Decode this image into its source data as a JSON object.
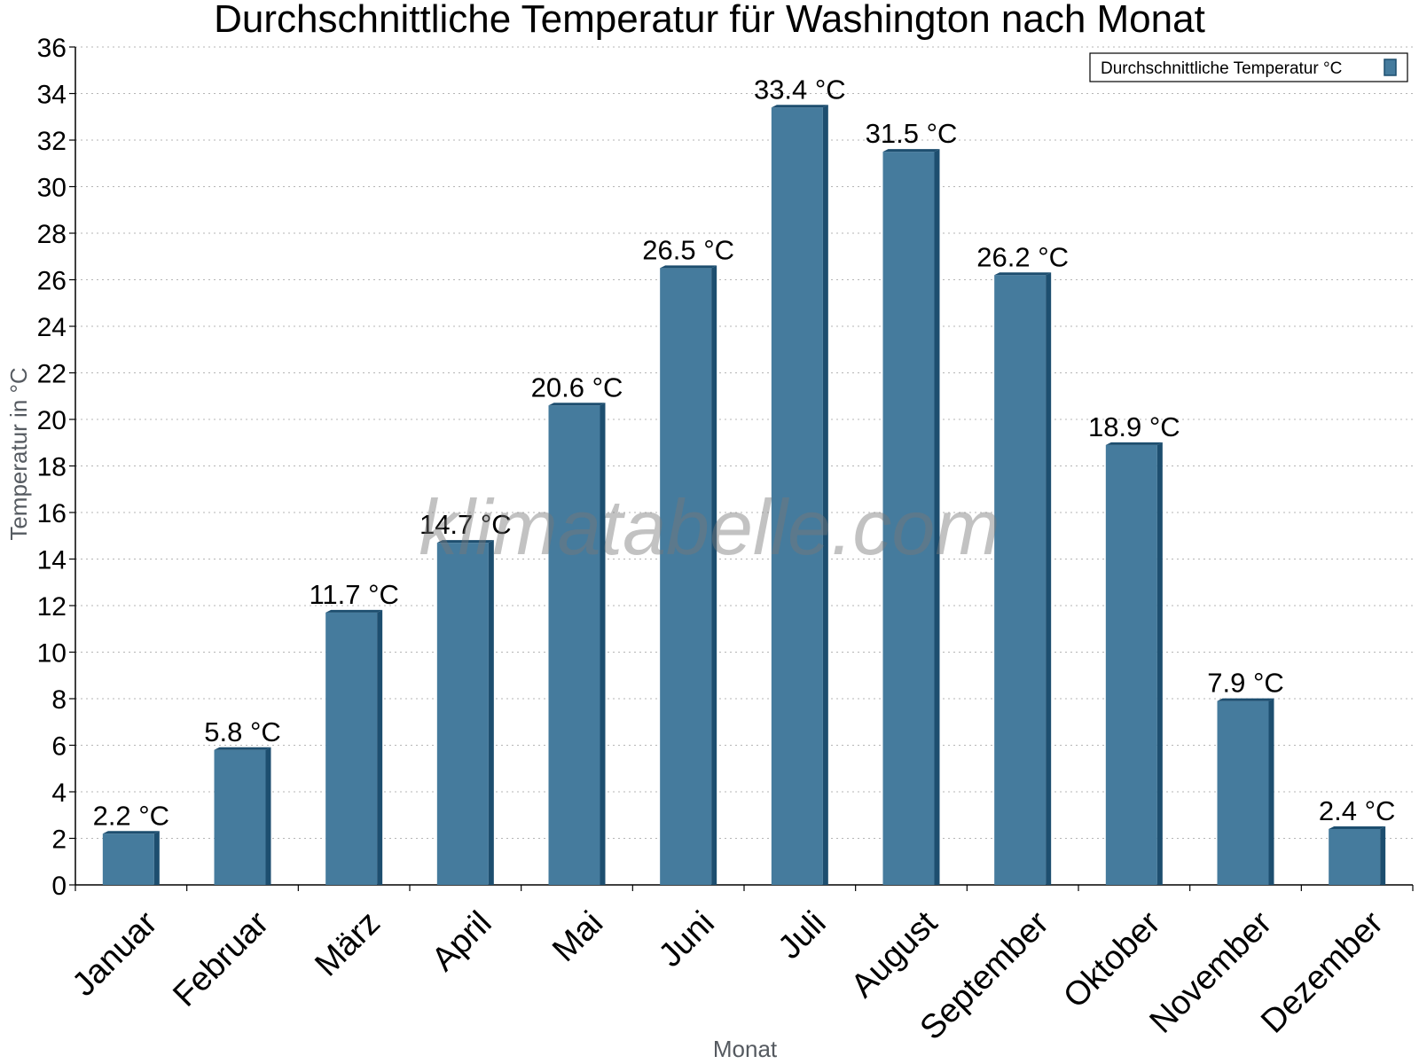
{
  "chart_data": {
    "type": "bar",
    "title": "Durchschnittliche Temperatur für Washington nach Monat",
    "xlabel": "Monat",
    "ylabel": "Temperatur in °C",
    "categories": [
      "Januar",
      "Februar",
      "März",
      "April",
      "Mai",
      "Juni",
      "Juli",
      "August",
      "September",
      "Oktober",
      "November",
      "Dezember"
    ],
    "series": [
      {
        "name": "Durchschnittliche Temperatur °C",
        "values": [
          2.2,
          5.8,
          11.7,
          14.7,
          20.6,
          26.5,
          33.4,
          31.5,
          26.2,
          18.9,
          7.9,
          2.4
        ],
        "labels": [
          "2.2 °C",
          "5.8 °C",
          "11.7 °C",
          "14.7 °C",
          "20.6 °C",
          "26.5 °C",
          "33.4 °C",
          "31.5 °C",
          "26.2 °C",
          "18.9 °C",
          "7.9 °C",
          "2.4 °C"
        ],
        "color": "#457b9d",
        "edge_color": "#1d4e6f"
      }
    ],
    "ylim": [
      0,
      36
    ],
    "yticks": [
      0,
      2,
      4,
      6,
      8,
      10,
      12,
      14,
      16,
      18,
      20,
      22,
      24,
      26,
      28,
      30,
      32,
      34,
      36
    ],
    "grid": true,
    "legend_position": "top-right",
    "watermark": "klimatabelle.com"
  }
}
